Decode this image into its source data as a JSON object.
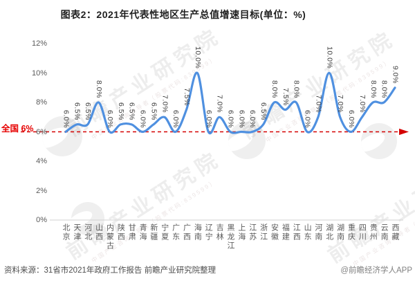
{
  "title": "图表2：2021年代表性地区生产总值增速目标(单位：%)",
  "chart_data": {
    "type": "line",
    "title": "图表2：2021年代表性地区生产总值增速目标(单位：%)",
    "categories": [
      "北京",
      "天津",
      "河北",
      "山西",
      "内蒙古",
      "陕西",
      "甘肃",
      "青海",
      "新疆",
      "宁夏",
      "广东",
      "广西",
      "海南",
      "辽宁",
      "吉林",
      "黑龙江",
      "上海",
      "江苏",
      "浙江",
      "安徽",
      "福建",
      "江西",
      "山东",
      "河南",
      "湖北",
      "湖南",
      "重庆",
      "四川",
      "贵州",
      "云南",
      "西藏"
    ],
    "values": [
      6,
      6.5,
      6.5,
      8,
      6,
      6.5,
      6.5,
      6,
      6.5,
      7,
      6,
      7.5,
      10,
      6,
      7,
      6,
      6,
      6,
      6.5,
      8,
      7.5,
      8,
      6,
      7,
      10,
      7,
      6,
      7,
      8,
      8,
      9
    ],
    "labels": [
      "6.0%",
      "6.5%",
      "6.5%",
      "8.0%",
      "6.0%",
      "6.5%",
      "6.5%",
      "6.0%",
      "6.5%",
      "7.0%",
      "6.0%",
      "7.5%",
      "10.0%",
      "6.0%",
      "7.0%",
      "6.0%",
      "6.0%",
      "6.0%",
      "6.5%",
      "8.0%",
      "7.5%",
      "8.0%",
      "6.0%",
      "7.0%",
      "10.0%",
      "7.0%",
      "6.0%",
      "7.0%",
      "8.0%",
      "8.0%",
      "9.0%"
    ],
    "ylim": [
      0,
      12
    ],
    "yticks": [
      0,
      2,
      4,
      6,
      8,
      10,
      12
    ],
    "ytick_labels": [
      "0%",
      "2%",
      "4%",
      "6%",
      "8%",
      "10%",
      "12%"
    ],
    "grid": "off",
    "legend": "none",
    "line_color": "#4f90e0",
    "reference_line": {
      "value": 6,
      "label": "全国 6%",
      "color": "#d40000"
    }
  },
  "watermark": {
    "text": "前瞻产业研究院",
    "subtext": "中国产业咨询领导者（股票代码:839599）"
  },
  "footer": {
    "source": "资料来源：31省市2021年政府工作报告 前瞻产业研究院整理",
    "credit": "@前瞻经济学人APP"
  }
}
